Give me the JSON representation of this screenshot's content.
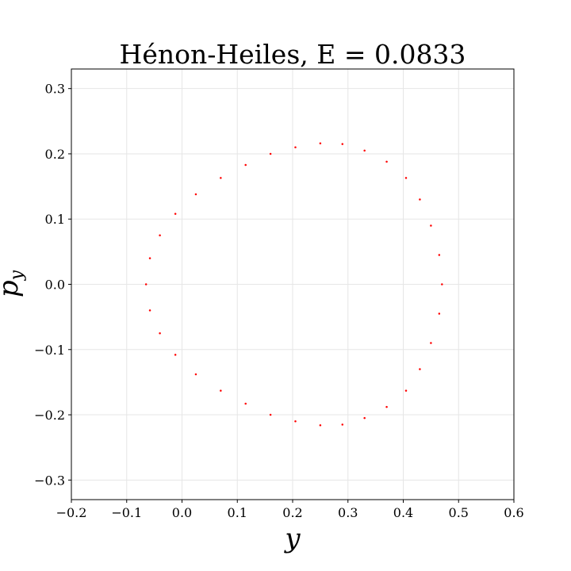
{
  "chart_data": {
    "type": "scatter",
    "title": "Hénon-Heiles, E = 0.0833",
    "xlabel": "y",
    "ylabel_base": "p",
    "ylabel_sub": "y",
    "xlim": [
      -0.2,
      0.6
    ],
    "ylim": [
      -0.33,
      0.33
    ],
    "x_ticks": [
      -0.2,
      -0.1,
      0.0,
      0.1,
      0.2,
      0.3,
      0.4,
      0.5,
      0.6
    ],
    "x_tick_labels": [
      "−0.2",
      "−0.1",
      "0.0",
      "0.1",
      "0.2",
      "0.3",
      "0.4",
      "0.5",
      "0.6"
    ],
    "y_ticks": [
      -0.3,
      -0.2,
      -0.1,
      0.0,
      0.1,
      0.2,
      0.3
    ],
    "y_tick_labels": [
      "−0.3",
      "−0.2",
      "−0.1",
      "0.0",
      "0.1",
      "0.2",
      "0.3"
    ],
    "grid": true,
    "marker_color": "#ff0000",
    "series": [
      {
        "values": [
          [
            -0.065,
            0.0
          ],
          [
            -0.058,
            0.04
          ],
          [
            -0.04,
            0.075
          ],
          [
            -0.012,
            0.108
          ],
          [
            0.025,
            0.138
          ],
          [
            0.07,
            0.163
          ],
          [
            0.115,
            0.183
          ],
          [
            0.16,
            0.2
          ],
          [
            0.205,
            0.21
          ],
          [
            0.25,
            0.216
          ],
          [
            0.29,
            0.215
          ],
          [
            0.33,
            0.205
          ],
          [
            0.37,
            0.188
          ],
          [
            0.405,
            0.163
          ],
          [
            0.43,
            0.13
          ],
          [
            0.45,
            0.09
          ],
          [
            0.465,
            0.045
          ],
          [
            0.47,
            0.0
          ],
          [
            0.465,
            -0.045
          ],
          [
            0.45,
            -0.09
          ],
          [
            0.43,
            -0.13
          ],
          [
            0.405,
            -0.163
          ],
          [
            0.37,
            -0.188
          ],
          [
            0.33,
            -0.205
          ],
          [
            0.29,
            -0.215
          ],
          [
            0.25,
            -0.216
          ],
          [
            0.205,
            -0.21
          ],
          [
            0.16,
            -0.2
          ],
          [
            0.115,
            -0.183
          ],
          [
            0.07,
            -0.163
          ],
          [
            0.025,
            -0.138
          ],
          [
            -0.012,
            -0.108
          ],
          [
            -0.04,
            -0.075
          ],
          [
            -0.058,
            -0.04
          ]
        ]
      }
    ]
  }
}
